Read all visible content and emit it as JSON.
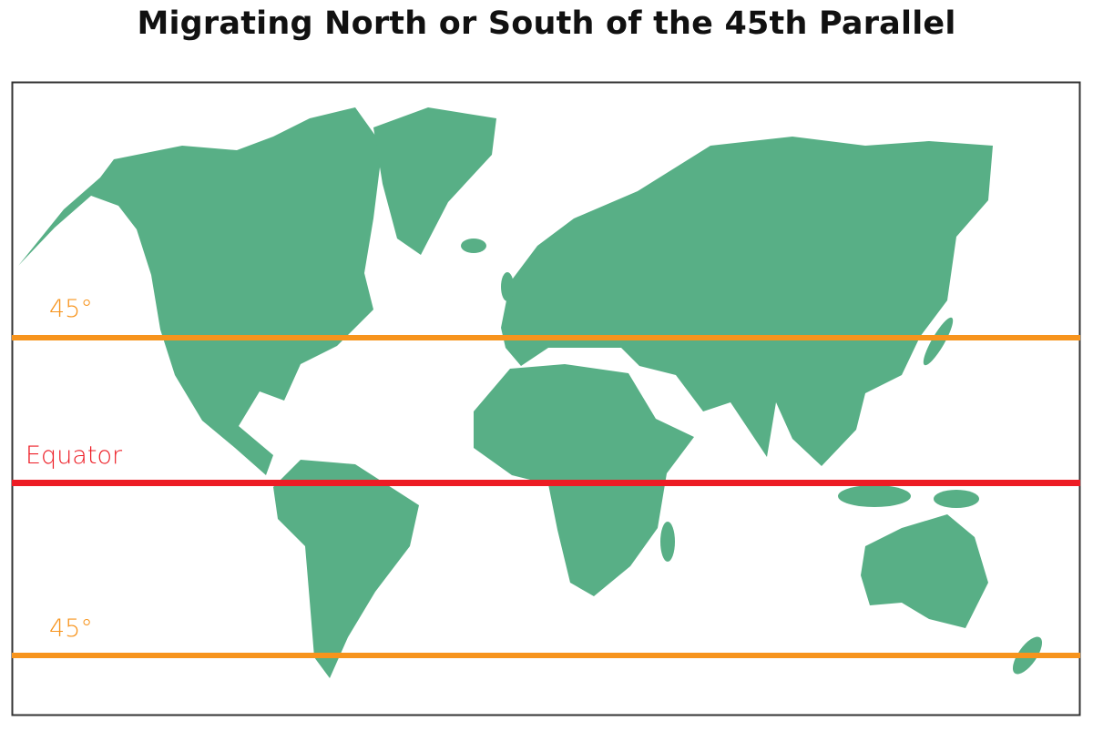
{
  "title": "Migrating North or South of the 45th Parallel",
  "labels": {
    "north_45": "45°",
    "equator": "Equator",
    "south_45": "45°"
  },
  "colors": {
    "land": "#58AF86",
    "parallel_45": "#F7941D",
    "equator": "#ED1C24",
    "frame": "#333333"
  },
  "lines": [
    {
      "name": "45th parallel north",
      "latitude": 45
    },
    {
      "name": "equator",
      "latitude": 0
    },
    {
      "name": "45th parallel south",
      "latitude": -45
    }
  ]
}
